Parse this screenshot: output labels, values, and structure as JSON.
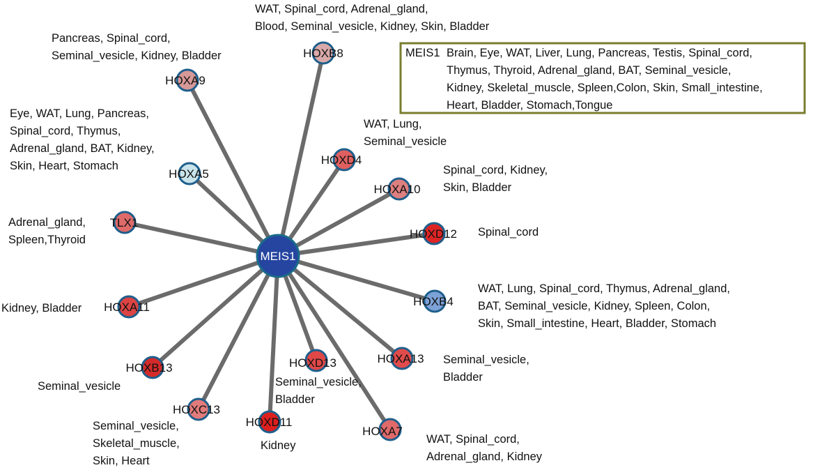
{
  "hub": {
    "label": "MEIS1",
    "fill": "#2545a0",
    "stroke": "#1a6a8a"
  },
  "node_stroke": "#1e5f8c",
  "edge_color": "#6b6b6b",
  "nodes": [
    {
      "id": "HOXB8",
      "label": "HOXB8",
      "fill": "#d9a9a9",
      "tissues": [
        "WAT, Spinal_cord, Adrenal_gland,",
        "Blood, Seminal_vesicle, Kidney, Skin, Bladder"
      ]
    },
    {
      "id": "HOXA9",
      "label": "HOXA9",
      "fill": "#d79898",
      "tissues": [
        "Pancreas, Spinal_cord,",
        "Seminal_vesicle, Kidney, Bladder"
      ]
    },
    {
      "id": "HOXA5",
      "label": "HOXA5",
      "fill": "#c8e4ea",
      "tissues": [
        "Eye, WAT, Lung, Pancreas,",
        "Spinal_cord, Thymus,",
        "Adrenal_gland, BAT, Kidney,",
        "Skin, Heart, Stomach"
      ]
    },
    {
      "id": "HOXD4",
      "label": "HOXD4",
      "fill": "#e06060",
      "tissues": [
        "WAT, Lung,",
        "Seminal_vesicle"
      ]
    },
    {
      "id": "HOXA10",
      "label": "HOXA10",
      "fill": "#de7f7f",
      "tissues": [
        "Spinal_cord, Kidney,",
        "Skin, Bladder"
      ]
    },
    {
      "id": "TLX1",
      "label": "TLX1",
      "fill": "#de6a6a",
      "tissues": [
        "Adrenal_gland,",
        "Spleen,Thyroid"
      ]
    },
    {
      "id": "HOXD12",
      "label": "HOXD12",
      "fill": "#dd2424",
      "tissues": [
        "Spinal_cord"
      ]
    },
    {
      "id": "HOXB4",
      "label": "HOXB4",
      "fill": "#7da2d8",
      "tissues": [
        "WAT, Lung, Spinal_cord, Thymus, Adrenal_gland,",
        "BAT, Seminal_vesicle, Kidney, Spleen, Colon,",
        "Skin, Small_intestine, Heart, Bladder, Stomach"
      ]
    },
    {
      "id": "HOXA11",
      "label": "HOXA11",
      "fill": "#dc4444",
      "tissues": [
        "Kidney, Bladder"
      ]
    },
    {
      "id": "HOXA13",
      "label": "HOXA13",
      "fill": "#e04b4b",
      "tissues": [
        "Seminal_vesicle,",
        "Bladder"
      ]
    },
    {
      "id": "HOXB13",
      "label": "HOXB13",
      "fill": "#d42a2a",
      "tissues": [
        "Seminal_vesicle"
      ]
    },
    {
      "id": "HOXD13",
      "label": "HOXD13",
      "fill": "#e04848",
      "tissues": [
        "Seminal_vesicle,",
        "Bladder"
      ]
    },
    {
      "id": "HOXC13",
      "label": "HOXC13",
      "fill": "#e27b7b",
      "tissues": [
        "Seminal_vesicle,",
        "Skeletal_muscle,",
        "Skin, Heart"
      ]
    },
    {
      "id": "HOXD11",
      "label": "HOXD11",
      "fill": "#dd1f1f",
      "tissues": [
        "Kidney"
      ]
    },
    {
      "id": "HOXA7",
      "label": "HOXA7",
      "fill": "#e06a6a",
      "tissues": [
        "WAT, Spinal_cord,",
        "Adrenal_gland, Kidney"
      ]
    }
  ],
  "meis_box": {
    "border_color": "#7a7d2e",
    "title": "MEIS1",
    "lines": [
      "Brain, Eye, WAT, Liver, Lung, Pancreas, Testis, Spinal_cord,",
      "Thymus, Thyroid, Adrenal_gland, BAT, Seminal_vesicle,",
      "Kidney, Skeletal_muscle, Spleen,Colon, Skin, Small_intestine,",
      "Heart, Bladder, Stomach,Tongue"
    ]
  }
}
